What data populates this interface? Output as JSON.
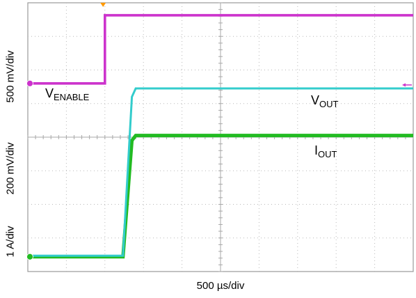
{
  "chart_data": {
    "type": "line",
    "title": "",
    "xlabel": "500 µs/div",
    "ylabels": [
      "1 A/div",
      "200 mV/div",
      "500 mV/div"
    ],
    "x_divisions": 10,
    "y_divisions": 8,
    "x_unit": "div",
    "xlim": [
      0,
      10
    ],
    "ylim": [
      0,
      8
    ],
    "grid": true,
    "grid_style": "dotted with minor ticks on center crosshair",
    "background": "#ffffff",
    "plot_border": "#9a9a9a",
    "series": [
      {
        "name": "VENABLE",
        "label_main": "V",
        "label_sub": "ENABLE",
        "color": "#cc33cc",
        "x": [
          0,
          2.0,
          2.0,
          10
        ],
        "y": [
          5.6,
          5.6,
          7.63,
          7.63
        ]
      },
      {
        "name": "VOUT",
        "label_main": "V",
        "label_sub": "OUT",
        "color": "#33cccc",
        "x": [
          0,
          2.47,
          2.7,
          2.8,
          10
        ],
        "y": [
          0.47,
          0.47,
          5.2,
          5.45,
          5.45
        ]
      },
      {
        "name": "IOUT",
        "label_main": "I",
        "label_sub": "OUT",
        "color": "#22bb22",
        "x": [
          0,
          2.47,
          2.7,
          2.8,
          10
        ],
        "y": [
          0.44,
          0.44,
          3.9,
          4.05,
          4.05
        ]
      }
    ],
    "trigger_marker_x": 2.0,
    "marker_colors": {
      "ch1": "#cc33cc",
      "ch2": "#22bb22",
      "trigger": "#ff9900",
      "right": "#cc33cc"
    },
    "ch_markers": [
      {
        "channel": "ch1",
        "y": 5.6
      },
      {
        "channel": "ch2",
        "y": 0.44
      }
    ]
  }
}
